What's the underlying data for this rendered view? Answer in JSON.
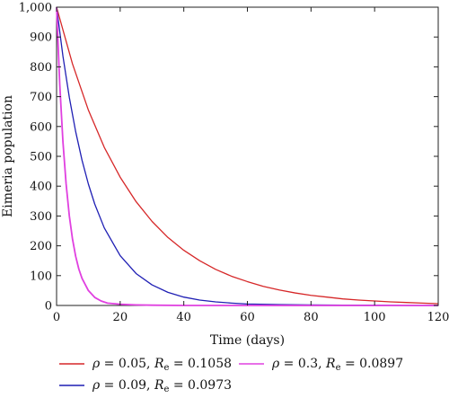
{
  "chart_data": {
    "type": "line",
    "title": "",
    "xlabel": "Time (days)",
    "ylabel": "Eimeria population",
    "xlim": [
      0,
      120
    ],
    "ylim": [
      0,
      1000
    ],
    "x_ticks": [
      0,
      20,
      40,
      60,
      80,
      100,
      120
    ],
    "y_ticks": [
      0,
      100,
      200,
      300,
      400,
      500,
      600,
      700,
      800,
      900,
      1000
    ],
    "y_tick_labels": [
      "0",
      "100",
      "200",
      "300",
      "400",
      "500",
      "600",
      "700",
      "800",
      "900",
      "1,000"
    ],
    "x_tick_labels": [
      "0",
      "20",
      "40",
      "60",
      "80",
      "100",
      "120"
    ],
    "grid": false,
    "legend_position": "bottom",
    "series": [
      {
        "name_parts": {
          "sym": "ρ",
          "eq1": " = 0.05, ",
          "R": "R",
          "sub": "e",
          "eq2": " = 0.1058"
        },
        "color": "#d62728",
        "x": [
          0,
          5,
          10,
          15,
          20,
          25,
          30,
          35,
          40,
          45,
          50,
          55,
          60,
          65,
          70,
          75,
          80,
          85,
          90,
          95,
          100,
          105,
          110,
          115,
          120
        ],
        "y": [
          1000,
          810,
          655,
          530,
          430,
          348,
          282,
          228,
          185,
          150,
          121,
          98,
          80,
          64,
          52,
          42,
          34,
          28,
          22,
          18,
          15,
          12,
          10,
          8,
          6
        ]
      },
      {
        "name_parts": {
          "sym": "ρ",
          "eq1": " = 0.09, ",
          "R": "R",
          "sub": "e",
          "eq2": " = 0.0973"
        },
        "color": "#1f1fb4",
        "x": [
          0,
          2,
          4,
          6,
          8,
          10,
          12,
          15,
          20,
          25,
          30,
          35,
          40,
          45,
          50,
          55,
          60,
          70,
          80,
          90,
          100,
          110,
          120
        ],
        "y": [
          1000,
          836,
          698,
          583,
          487,
          407,
          340,
          260,
          167,
          107,
          69,
          44,
          28,
          18,
          12,
          8,
          5,
          3,
          2,
          1,
          1,
          0,
          0
        ]
      },
      {
        "name_parts": {
          "sym": "ρ",
          "eq1": " = 0.3, ",
          "R": "R",
          "sub": "e",
          "eq2": " = 0.0897"
        },
        "color": "#e040e0",
        "x": [
          0,
          1,
          2,
          3,
          4,
          5,
          6,
          7,
          8,
          10,
          12,
          14,
          16,
          20,
          25,
          30,
          40,
          50,
          60,
          80,
          100,
          120
        ],
        "y": [
          1000,
          741,
          549,
          407,
          301,
          223,
          165,
          122,
          91,
          50,
          27,
          15,
          8,
          4,
          2,
          1,
          0,
          0,
          0,
          0,
          0,
          0
        ]
      }
    ]
  }
}
